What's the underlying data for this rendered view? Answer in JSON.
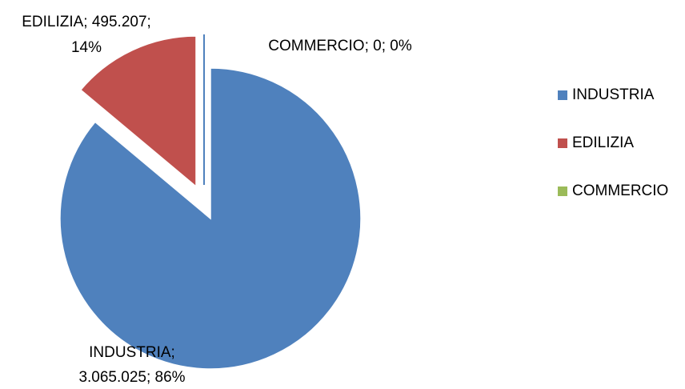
{
  "chart_data": {
    "type": "pie",
    "categories": [
      "INDUSTRIA",
      "EDILIZIA",
      "COMMERCIO"
    ],
    "values": [
      3065025,
      495207,
      0
    ],
    "value_labels": [
      [
        "INDUSTRIA;",
        "3.065.025; 86%"
      ],
      [
        "EDILIZIA; 495.207;",
        "14%"
      ],
      [
        "COMMERCIO; 0; 0%"
      ]
    ],
    "colors": [
      "#4f81bd",
      "#c0504d",
      "#9bbb59"
    ],
    "legend": "right"
  }
}
